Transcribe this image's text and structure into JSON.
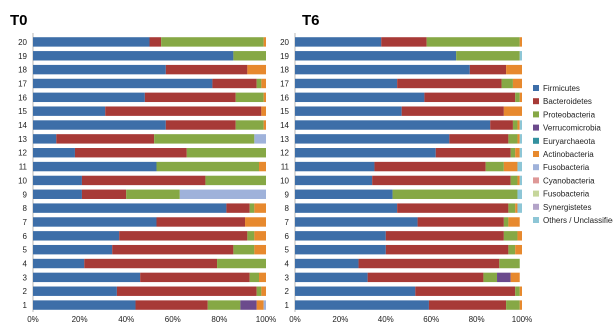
{
  "chart_data": [
    {
      "type": "bar",
      "orientation": "horizontal",
      "stacked": true,
      "title": "T0",
      "categories": [
        "1",
        "2",
        "3",
        "4",
        "5",
        "6",
        "7",
        "8",
        "9",
        "10",
        "11",
        "12",
        "13",
        "14",
        "15",
        "16",
        "17",
        "18",
        "19",
        "20"
      ],
      "xlim": [
        0,
        100
      ],
      "x_ticks": [
        "0%",
        "20%",
        "40%",
        "60%",
        "80%",
        "100%"
      ],
      "series": [
        {
          "name": "Firmicutes",
          "values": [
            44,
            36,
            46,
            22,
            34,
            37,
            53,
            83,
            21,
            21,
            53,
            18,
            10,
            57,
            31,
            48,
            77,
            57,
            86,
            50
          ]
        },
        {
          "name": "Bacteroidetes",
          "values": [
            31,
            60,
            47,
            57,
            52,
            55,
            38,
            10,
            19,
            53,
            0,
            48,
            42,
            30,
            67,
            39,
            19,
            35,
            0,
            5
          ]
        },
        {
          "name": "Proteobacteria",
          "values": [
            14,
            2,
            4,
            21,
            9,
            3,
            0,
            2,
            23,
            26,
            44,
            34,
            43,
            12,
            0,
            12,
            2,
            0,
            14,
            44
          ]
        },
        {
          "name": "Verrucomicrobia",
          "values": [
            7,
            0,
            0,
            0,
            0,
            0,
            0,
            0,
            0,
            0,
            0,
            0,
            0,
            0,
            0,
            0,
            0,
            0,
            0,
            0
          ]
        },
        {
          "name": "Euryarchaeota",
          "values": [
            0,
            0,
            0,
            0,
            0,
            0,
            0,
            0,
            0,
            0,
            0,
            0,
            0,
            0,
            0,
            0,
            0,
            0,
            0,
            0
          ]
        },
        {
          "name": "Actinobacteria",
          "values": [
            3,
            2,
            3,
            0,
            5,
            5,
            9,
            5,
            0,
            0,
            3,
            0,
            0,
            1,
            2,
            1,
            2,
            8,
            0,
            1
          ]
        },
        {
          "name": "Fusobacteria",
          "values": [
            1,
            0,
            0,
            0,
            0,
            0,
            0,
            0,
            37,
            0,
            0,
            0,
            5,
            0,
            0,
            0,
            0,
            0,
            0,
            0
          ]
        },
        {
          "name": "Cyanobacteria",
          "values": [
            0,
            0,
            0,
            0,
            0,
            0,
            0,
            0,
            0,
            0,
            0,
            0,
            0,
            0,
            0,
            0,
            0,
            0,
            0,
            0
          ]
        },
        {
          "name": "Fusobacteria",
          "values": [
            0,
            0,
            0,
            0,
            0,
            0,
            0,
            0,
            0,
            0,
            0,
            0,
            0,
            0,
            0,
            0,
            0,
            0,
            0,
            0
          ]
        },
        {
          "name": "Synergistetes",
          "values": [
            0,
            0,
            0,
            0,
            0,
            0,
            0,
            0,
            0,
            0,
            0,
            0,
            0,
            0,
            0,
            0,
            0,
            0,
            0,
            0
          ]
        },
        {
          "name": "Others / Unclassified",
          "values": [
            0,
            0,
            0,
            0,
            0,
            0,
            0,
            0,
            0,
            0,
            0,
            0,
            0,
            0,
            0,
            0,
            0,
            0,
            0,
            0
          ]
        }
      ]
    },
    {
      "type": "bar",
      "orientation": "horizontal",
      "stacked": true,
      "title": "T6",
      "categories": [
        "1",
        "2",
        "3",
        "4",
        "5",
        "6",
        "7",
        "8",
        "9",
        "10",
        "11",
        "12",
        "13",
        "14",
        "15",
        "16",
        "17",
        "18",
        "19",
        "20"
      ],
      "xlim": [
        0,
        100
      ],
      "x_ticks": [
        "0%",
        "20%",
        "40%",
        "60%",
        "80%",
        "100%"
      ],
      "series": [
        {
          "name": "Firmicutes",
          "values": [
            59,
            53,
            32,
            28,
            40,
            40,
            54,
            45,
            43,
            34,
            35,
            62,
            68,
            86,
            47,
            57,
            45,
            77,
            71,
            38
          ]
        },
        {
          "name": "Bacteroidetes",
          "values": [
            34,
            44,
            51,
            62,
            54,
            52,
            38,
            49,
            0,
            61,
            49,
            33,
            26,
            10,
            45,
            40,
            46,
            16,
            0,
            20
          ]
        },
        {
          "name": "Proteobacteria",
          "values": [
            6,
            2,
            6,
            9,
            3,
            6,
            2,
            3,
            55,
            3,
            8,
            2,
            4,
            2,
            0,
            2,
            5,
            0,
            28,
            41
          ]
        },
        {
          "name": "Verrucomicrobia",
          "values": [
            0,
            0,
            6,
            0,
            0,
            0,
            0,
            0,
            0,
            0,
            0,
            0,
            0,
            0,
            0,
            0,
            0,
            0,
            0,
            0
          ]
        },
        {
          "name": "Euryarchaeota",
          "values": [
            0,
            0,
            0,
            0,
            0,
            0,
            0,
            0,
            0,
            0,
            0,
            0,
            0,
            0,
            0,
            0,
            0,
            0,
            0,
            0
          ]
        },
        {
          "name": "Actinobacteria",
          "values": [
            1,
            1,
            4,
            0,
            3,
            2,
            5,
            1,
            0,
            1,
            6,
            2,
            1,
            1,
            8,
            1,
            4,
            7,
            0,
            1
          ]
        },
        {
          "name": "Fusobacteria",
          "values": [
            0,
            0,
            0,
            0,
            0,
            0,
            0,
            0,
            0,
            0,
            0,
            0,
            0,
            0,
            0,
            0,
            0,
            0,
            0,
            0
          ]
        },
        {
          "name": "Cyanobacteria",
          "values": [
            0,
            0,
            0,
            0,
            0,
            0,
            0,
            0,
            0,
            0,
            0,
            0,
            0,
            0,
            0,
            0,
            0,
            0,
            0,
            0
          ]
        },
        {
          "name": "Fusobacteria",
          "values": [
            0,
            0,
            0,
            0,
            0,
            0,
            0,
            0,
            0,
            0,
            0,
            0,
            0,
            0,
            0,
            0,
            0,
            0,
            0,
            0
          ]
        },
        {
          "name": "Synergistetes",
          "values": [
            0,
            0,
            0,
            0,
            0,
            0,
            0,
            0,
            0,
            0,
            0,
            0,
            0,
            0,
            0,
            0,
            0,
            0,
            0,
            0
          ]
        },
        {
          "name": "Others / Unclassified",
          "values": [
            0,
            0,
            0,
            0,
            0,
            0,
            0,
            2,
            2,
            1,
            2,
            1,
            1,
            1,
            0,
            0,
            0,
            0,
            1,
            0
          ]
        }
      ]
    }
  ],
  "legend": {
    "placement": "right",
    "items": [
      {
        "label": "Firmicutes",
        "color": "#3d6ea8"
      },
      {
        "label": "Bacteroidetes",
        "color": "#a73a37"
      },
      {
        "label": "Proteobacteria",
        "color": "#86a845"
      },
      {
        "label": "Verrucomicrobia",
        "color": "#6b4a8c"
      },
      {
        "label": "Euryarchaeota",
        "color": "#33919f"
      },
      {
        "label": "Actinobacteria",
        "color": "#e7892e"
      },
      {
        "label": "Fusobacteria",
        "color": "#9fb2da"
      },
      {
        "label": "Cyanobacteria",
        "color": "#de9897"
      },
      {
        "label": "Fusobacteria",
        "color": "#c6d69b"
      },
      {
        "label": "Synergistetes",
        "color": "#b3a3c8"
      },
      {
        "label": "Others / Unclassified",
        "color": "#8dc6d6"
      }
    ]
  }
}
